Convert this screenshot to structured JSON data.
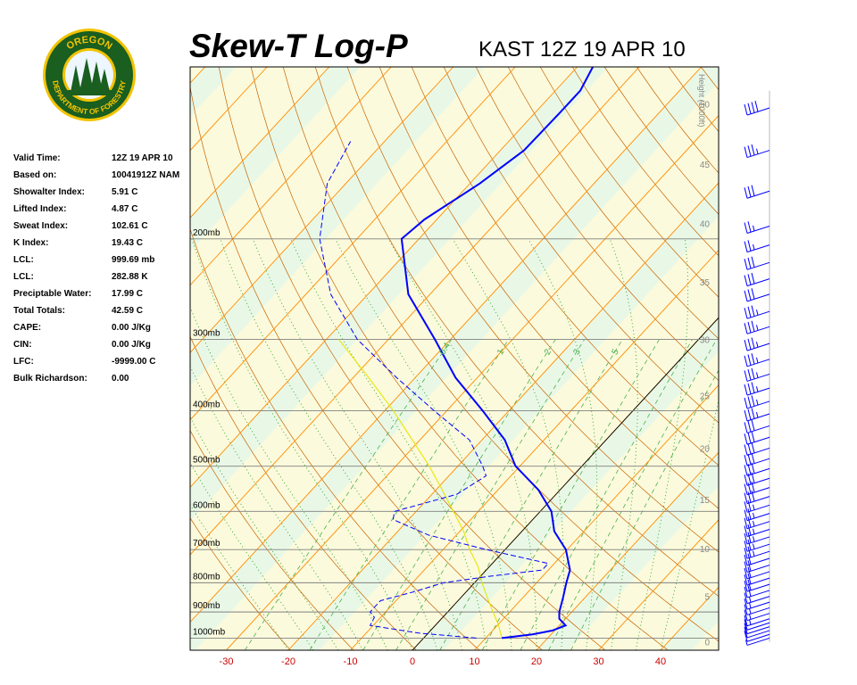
{
  "header": {
    "title": "Skew-T Log-P",
    "station": "KAST 12Z 19 APR 10"
  },
  "logo": {
    "top_text": "OREGON",
    "bottom_text": "DEPARTMENT OF FORESTRY",
    "color_ring": "#1a5e20",
    "color_text": "#f2c300"
  },
  "info": [
    {
      "label": "Valid Time:",
      "value": "12Z 19 APR 10"
    },
    {
      "label": "Based on:",
      "value": "10041912Z NAM"
    },
    {
      "label": "Showalter Index:",
      "value": "5.91 C"
    },
    {
      "label": "Lifted Index:",
      "value": "4.87 C"
    },
    {
      "label": "Sweat Index:",
      "value": "102.61 C"
    },
    {
      "label": "K Index:",
      "value": "19.43 C"
    },
    {
      "label": "LCL:",
      "value": "999.69 mb"
    },
    {
      "label": "LCL:",
      "value": "282.88 K"
    },
    {
      "label": "Preciptable Water:",
      "value": "17.99 C"
    },
    {
      "label": "Total Totals:",
      "value": "42.59 C"
    },
    {
      "label": "CAPE:",
      "value": "0.00 J/Kg"
    },
    {
      "label": "CIN:",
      "value": "0.00 J/Kg"
    },
    {
      "label": "LFC:",
      "value": "-9999.00 C"
    },
    {
      "label": "Bulk Richardson:",
      "value": "0.00"
    }
  ],
  "chart_data": {
    "type": "line",
    "subtype": "skew-t log-p",
    "colors": {
      "background_band_a": "#e9f8e6",
      "background_band_b": "#fbfadc",
      "temperature": "#0000ff",
      "dewpoint": "#0000ff",
      "parcel": "#e6e600",
      "isotherm": "#ff8c00",
      "dry_adiabat": "#c86400",
      "moist_adiabat": "#2ca02c",
      "mixing_ratio": "#4caf50",
      "isobar": "#808080",
      "temp_labels": "#cc0000",
      "wind_barb": "#0000ff"
    },
    "x_axis": {
      "label": "",
      "ticks": [
        -30,
        -20,
        -10,
        0,
        10,
        20,
        30,
        40
      ],
      "tick_labels": [
        "-30",
        "-20",
        "-10",
        "0",
        "10",
        "20",
        "30",
        "40"
      ]
    },
    "isobars": [
      {
        "p": 1000,
        "label": "1000mb"
      },
      {
        "p": 900,
        "label": "900mb"
      },
      {
        "p": 800,
        "label": "800mb"
      },
      {
        "p": 700,
        "label": "700mb"
      },
      {
        "p": 600,
        "label": "600mb"
      },
      {
        "p": 500,
        "label": "500mb"
      },
      {
        "p": 400,
        "label": "400mb"
      },
      {
        "p": 300,
        "label": "300mb"
      },
      {
        "p": 200,
        "label": "200mb"
      }
    ],
    "height_axis": {
      "title": "Height (1000ft)",
      "ticks": [
        {
          "p": 1015,
          "label": "0"
        },
        {
          "p": 845,
          "label": "5"
        },
        {
          "p": 697,
          "label": "10"
        },
        {
          "p": 572,
          "label": "15"
        },
        {
          "p": 465,
          "label": "20"
        },
        {
          "p": 376,
          "label": "25"
        },
        {
          "p": 300,
          "label": "30"
        },
        {
          "p": 238,
          "label": "35"
        },
        {
          "p": 188,
          "label": "40"
        },
        {
          "p": 148,
          "label": "45"
        },
        {
          "p": 116,
          "label": "50"
        }
      ]
    },
    "mixing_ratio_labels": [
      "0.4",
      "1",
      "2",
      "3",
      "5"
    ],
    "temperature_profile": [
      {
        "p": 1000,
        "t": 12.6
      },
      {
        "p": 985,
        "t": 17
      },
      {
        "p": 970,
        "t": 19.6
      },
      {
        "p": 950,
        "t": 21
      },
      {
        "p": 925,
        "t": 19
      },
      {
        "p": 900,
        "t": 18
      },
      {
        "p": 850,
        "t": 16.5
      },
      {
        "p": 800,
        "t": 14.8
      },
      {
        "p": 760,
        "t": 13.5
      },
      {
        "p": 700,
        "t": 9.8
      },
      {
        "p": 650,
        "t": 5.2
      },
      {
        "p": 600,
        "t": 1.8
      },
      {
        "p": 550,
        "t": -3.5
      },
      {
        "p": 500,
        "t": -10.7
      },
      {
        "p": 450,
        "t": -16.3
      },
      {
        "p": 400,
        "t": -24.2
      },
      {
        "p": 350,
        "t": -33.5
      },
      {
        "p": 300,
        "t": -42.5
      },
      {
        "p": 250,
        "t": -53.5
      },
      {
        "p": 200,
        "t": -62.8
      },
      {
        "p": 185,
        "t": -62
      },
      {
        "p": 160,
        "t": -58.4
      },
      {
        "p": 140,
        "t": -56.2
      },
      {
        "p": 120,
        "t": -56
      },
      {
        "p": 110,
        "t": -56
      },
      {
        "p": 100,
        "t": -57.5
      }
    ],
    "dewpoint_profile": [
      {
        "p": 1000,
        "t": 8.5
      },
      {
        "p": 980,
        "t": -1.5
      },
      {
        "p": 950,
        "t": -10.5
      },
      {
        "p": 920,
        "t": -11
      },
      {
        "p": 900,
        "t": -12.5
      },
      {
        "p": 860,
        "t": -12.5
      },
      {
        "p": 830,
        "t": -8.5
      },
      {
        "p": 800,
        "t": -5
      },
      {
        "p": 780,
        "t": 1.3
      },
      {
        "p": 760,
        "t": 9
      },
      {
        "p": 740,
        "t": 9
      },
      {
        "p": 700,
        "t": -3
      },
      {
        "p": 660,
        "t": -14.5
      },
      {
        "p": 620,
        "t": -22.5
      },
      {
        "p": 600,
        "t": -23.5
      },
      {
        "p": 560,
        "t": -16
      },
      {
        "p": 520,
        "t": -14
      },
      {
        "p": 500,
        "t": -16
      },
      {
        "p": 450,
        "t": -22
      },
      {
        "p": 400,
        "t": -32
      },
      {
        "p": 350,
        "t": -43
      },
      {
        "p": 300,
        "t": -55
      },
      {
        "p": 250,
        "t": -66
      },
      {
        "p": 200,
        "t": -76
      },
      {
        "p": 160,
        "t": -83
      },
      {
        "p": 135,
        "t": -85.5
      }
    ],
    "parcel_profile": [
      {
        "p": 1000,
        "t": 12.6
      },
      {
        "p": 950,
        "t": 10.2
      },
      {
        "p": 900,
        "t": 7.3
      },
      {
        "p": 850,
        "t": 4.3
      },
      {
        "p": 800,
        "t": 1.2
      },
      {
        "p": 750,
        "t": -1.8
      },
      {
        "p": 700,
        "t": -5.7
      },
      {
        "p": 650,
        "t": -9.4
      },
      {
        "p": 600,
        "t": -14
      },
      {
        "p": 550,
        "t": -19
      },
      {
        "p": 500,
        "t": -24.6
      },
      {
        "p": 450,
        "t": -31.2
      },
      {
        "p": 400,
        "t": -38.6
      },
      {
        "p": 350,
        "t": -47.5
      },
      {
        "p": 300,
        "t": -58
      }
    ],
    "wind_barbs": [
      {
        "p": 1000,
        "speed": 5
      },
      {
        "p": 985,
        "speed": 10
      },
      {
        "p": 970,
        "speed": 10
      },
      {
        "p": 955,
        "speed": 10
      },
      {
        "p": 940,
        "speed": 10
      },
      {
        "p": 925,
        "speed": 15
      },
      {
        "p": 905,
        "speed": 15
      },
      {
        "p": 885,
        "speed": 15
      },
      {
        "p": 865,
        "speed": 15
      },
      {
        "p": 845,
        "speed": 15
      },
      {
        "p": 825,
        "speed": 20
      },
      {
        "p": 805,
        "speed": 20
      },
      {
        "p": 785,
        "speed": 20
      },
      {
        "p": 765,
        "speed": 20
      },
      {
        "p": 745,
        "speed": 20
      },
      {
        "p": 725,
        "speed": 20
      },
      {
        "p": 705,
        "speed": 25
      },
      {
        "p": 685,
        "speed": 25
      },
      {
        "p": 665,
        "speed": 25
      },
      {
        "p": 645,
        "speed": 25
      },
      {
        "p": 625,
        "speed": 25
      },
      {
        "p": 605,
        "speed": 25
      },
      {
        "p": 585,
        "speed": 25
      },
      {
        "p": 565,
        "speed": 30
      },
      {
        "p": 545,
        "speed": 30
      },
      {
        "p": 525,
        "speed": 30
      },
      {
        "p": 505,
        "speed": 30
      },
      {
        "p": 485,
        "speed": 30
      },
      {
        "p": 465,
        "speed": 30
      },
      {
        "p": 445,
        "speed": 30
      },
      {
        "p": 425,
        "speed": 30
      },
      {
        "p": 405,
        "speed": 35
      },
      {
        "p": 385,
        "speed": 35
      },
      {
        "p": 365,
        "speed": 35
      },
      {
        "p": 345,
        "speed": 35
      },
      {
        "p": 325,
        "speed": 35
      },
      {
        "p": 305,
        "speed": 35
      },
      {
        "p": 285,
        "speed": 35
      },
      {
        "p": 268,
        "speed": 35
      },
      {
        "p": 250,
        "speed": 30
      },
      {
        "p": 235,
        "speed": 30
      },
      {
        "p": 220,
        "speed": 30
      },
      {
        "p": 205,
        "speed": 25
      },
      {
        "p": 190,
        "speed": 25
      },
      {
        "p": 165,
        "speed": 30
      },
      {
        "p": 140,
        "speed": 35
      },
      {
        "p": 118,
        "speed": 40
      }
    ]
  }
}
